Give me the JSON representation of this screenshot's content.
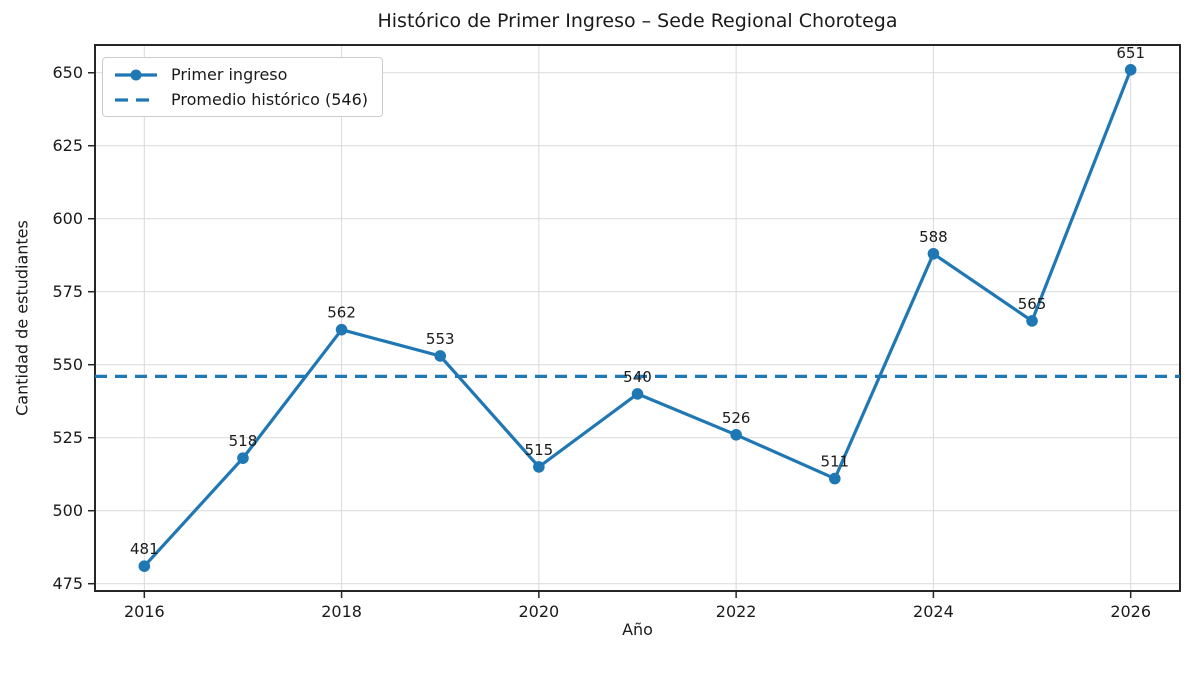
{
  "colors": {
    "line": "#1f77b4",
    "mean_line": "#1f77b4",
    "grid": "#d9d9d9",
    "spine": "#262626",
    "text": "#1a1a1a",
    "legend_border": "#cccccc",
    "background": "#ffffff"
  },
  "chart_data": {
    "type": "line",
    "title": "Histórico de Primer Ingreso – Sede Regional Chorotega",
    "xlabel": "Año",
    "ylabel": "Cantidad de estudiantes",
    "x": [
      2016,
      2017,
      2018,
      2019,
      2020,
      2021,
      2022,
      2023,
      2024,
      2025,
      2026
    ],
    "series": [
      {
        "name": "Primer ingreso",
        "values": [
          481,
          518,
          562,
          553,
          515,
          540,
          526,
          511,
          588,
          565,
          651
        ],
        "style": "solid",
        "marker": "circle"
      }
    ],
    "mean_line": {
      "label": "Promedio histórico (546)",
      "value": 546,
      "style": "dashed"
    },
    "point_labels": [
      481,
      518,
      562,
      553,
      515,
      540,
      526,
      511,
      588,
      565,
      651
    ],
    "xticks": [
      2016,
      2018,
      2020,
      2022,
      2024,
      2026
    ],
    "yticks": [
      475,
      500,
      525,
      550,
      575,
      600,
      625,
      650
    ],
    "xlim": [
      2015.5,
      2026.5
    ],
    "ylim": [
      472.5,
      659.5
    ],
    "grid": true,
    "legend_position": "upper left"
  }
}
